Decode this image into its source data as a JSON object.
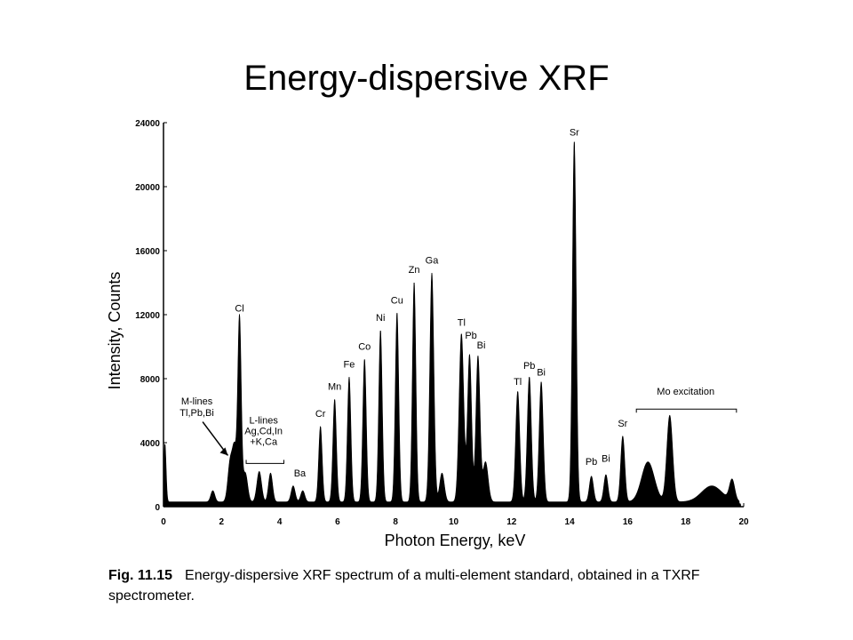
{
  "slide": {
    "title": "Energy-dispersive XRF"
  },
  "caption": {
    "figure_label": "Fig. 11.15",
    "text": "Energy-dispersive XRF spectrum of a multi-element standard, obtained in a TXRF spectrometer."
  },
  "chart_data": {
    "type": "area",
    "xlabel": "Photon Energy, keV",
    "ylabel": "Intensity, Counts",
    "xlim": [
      0,
      20
    ],
    "ylim": [
      0,
      24000
    ],
    "x_ticks": [
      "0",
      "2",
      "4",
      "6",
      "8",
      "10",
      "12",
      "14",
      "16",
      "18",
      "20"
    ],
    "y_ticks": [
      "0",
      "4000",
      "8000",
      "12000",
      "16000",
      "20000",
      "24000"
    ],
    "grid": false,
    "fill_color": "#000000",
    "baseline": 300,
    "peaks": [
      {
        "x": 0.05,
        "y": 3600,
        "width": 0.04
      },
      {
        "x": 1.7,
        "y": 700,
        "width": 0.07
      },
      {
        "x": 2.3,
        "y": 2500,
        "width": 0.08
      },
      {
        "x": 2.45,
        "y": 3100,
        "width": 0.07
      },
      {
        "x": 2.62,
        "y": 11500,
        "width": 0.06
      },
      {
        "x": 2.82,
        "y": 1800,
        "width": 0.08
      },
      {
        "x": 3.3,
        "y": 1900,
        "width": 0.08
      },
      {
        "x": 3.69,
        "y": 1800,
        "width": 0.07
      },
      {
        "x": 4.47,
        "y": 1000,
        "width": 0.07
      },
      {
        "x": 4.8,
        "y": 700,
        "width": 0.07
      },
      {
        "x": 5.41,
        "y": 4700,
        "width": 0.06
      },
      {
        "x": 5.9,
        "y": 6400,
        "width": 0.06
      },
      {
        "x": 6.4,
        "y": 7800,
        "width": 0.06
      },
      {
        "x": 6.93,
        "y": 8900,
        "width": 0.06
      },
      {
        "x": 7.48,
        "y": 10700,
        "width": 0.06
      },
      {
        "x": 8.05,
        "y": 11800,
        "width": 0.06
      },
      {
        "x": 8.64,
        "y": 13700,
        "width": 0.06
      },
      {
        "x": 9.25,
        "y": 14300,
        "width": 0.07
      },
      {
        "x": 9.6,
        "y": 1800,
        "width": 0.08
      },
      {
        "x": 10.27,
        "y": 10500,
        "width": 0.08
      },
      {
        "x": 10.55,
        "y": 9200,
        "width": 0.07
      },
      {
        "x": 10.84,
        "y": 9100,
        "width": 0.07
      },
      {
        "x": 11.1,
        "y": 2500,
        "width": 0.09
      },
      {
        "x": 12.21,
        "y": 6900,
        "width": 0.07
      },
      {
        "x": 12.61,
        "y": 7800,
        "width": 0.07
      },
      {
        "x": 13.02,
        "y": 7500,
        "width": 0.07
      },
      {
        "x": 14.16,
        "y": 22500,
        "width": 0.065
      },
      {
        "x": 14.75,
        "y": 1600,
        "width": 0.07
      },
      {
        "x": 15.25,
        "y": 1700,
        "width": 0.07
      },
      {
        "x": 15.83,
        "y": 4100,
        "width": 0.07
      },
      {
        "x": 16.7,
        "y": 2500,
        "width": 0.22
      },
      {
        "x": 17.45,
        "y": 5400,
        "width": 0.1
      },
      {
        "x": 18.9,
        "y": 1000,
        "width": 0.35
      },
      {
        "x": 19.6,
        "y": 1300,
        "width": 0.09
      }
    ],
    "peak_labels": [
      {
        "text": "Cl",
        "x": 2.62,
        "y": 12200
      },
      {
        "text": "Ba",
        "x": 4.7,
        "y": 1900
      },
      {
        "text": "Cr",
        "x": 5.41,
        "y": 5600
      },
      {
        "text": "Mn",
        "x": 5.9,
        "y": 7300
      },
      {
        "text": "Fe",
        "x": 6.4,
        "y": 8700
      },
      {
        "text": "Co",
        "x": 6.93,
        "y": 9800
      },
      {
        "text": "Ni",
        "x": 7.48,
        "y": 11600
      },
      {
        "text": "Cu",
        "x": 8.05,
        "y": 12700
      },
      {
        "text": "Zn",
        "x": 8.64,
        "y": 14600
      },
      {
        "text": "Ga",
        "x": 9.25,
        "y": 15200
      },
      {
        "text": "Tl",
        "x": 10.27,
        "y": 11300
      },
      {
        "text": "Pb",
        "x": 10.6,
        "y": 10500
      },
      {
        "text": "Bi",
        "x": 10.95,
        "y": 9900
      },
      {
        "text": "Tl",
        "x": 12.21,
        "y": 7600
      },
      {
        "text": "Pb",
        "x": 12.61,
        "y": 8600
      },
      {
        "text": "Bi",
        "x": 13.02,
        "y": 8200
      },
      {
        "text": "Sr",
        "x": 14.16,
        "y": 23200
      },
      {
        "text": "Pb",
        "x": 14.75,
        "y": 2600
      },
      {
        "text": "Bi",
        "x": 15.25,
        "y": 2800
      },
      {
        "text": "Sr",
        "x": 15.83,
        "y": 5000
      }
    ],
    "annotations": {
      "m_lines": {
        "lines": [
          "M-lines",
          "Tl,Pb,Bi"
        ],
        "x": 1.15,
        "y": 6400
      },
      "l_lines": {
        "lines": [
          "L-lines",
          "Ag,Cd,In",
          "+K,Ca"
        ],
        "x": 3.45,
        "y": 5200,
        "bracket_from": 2.85,
        "bracket_to": 4.15,
        "bracket_y": 2700
      },
      "mo_excitation": {
        "text": "Mo excitation",
        "x": 18.0,
        "y": 7000,
        "bracket_from": 16.3,
        "bracket_to": 19.75,
        "bracket_y": 6100
      }
    }
  }
}
